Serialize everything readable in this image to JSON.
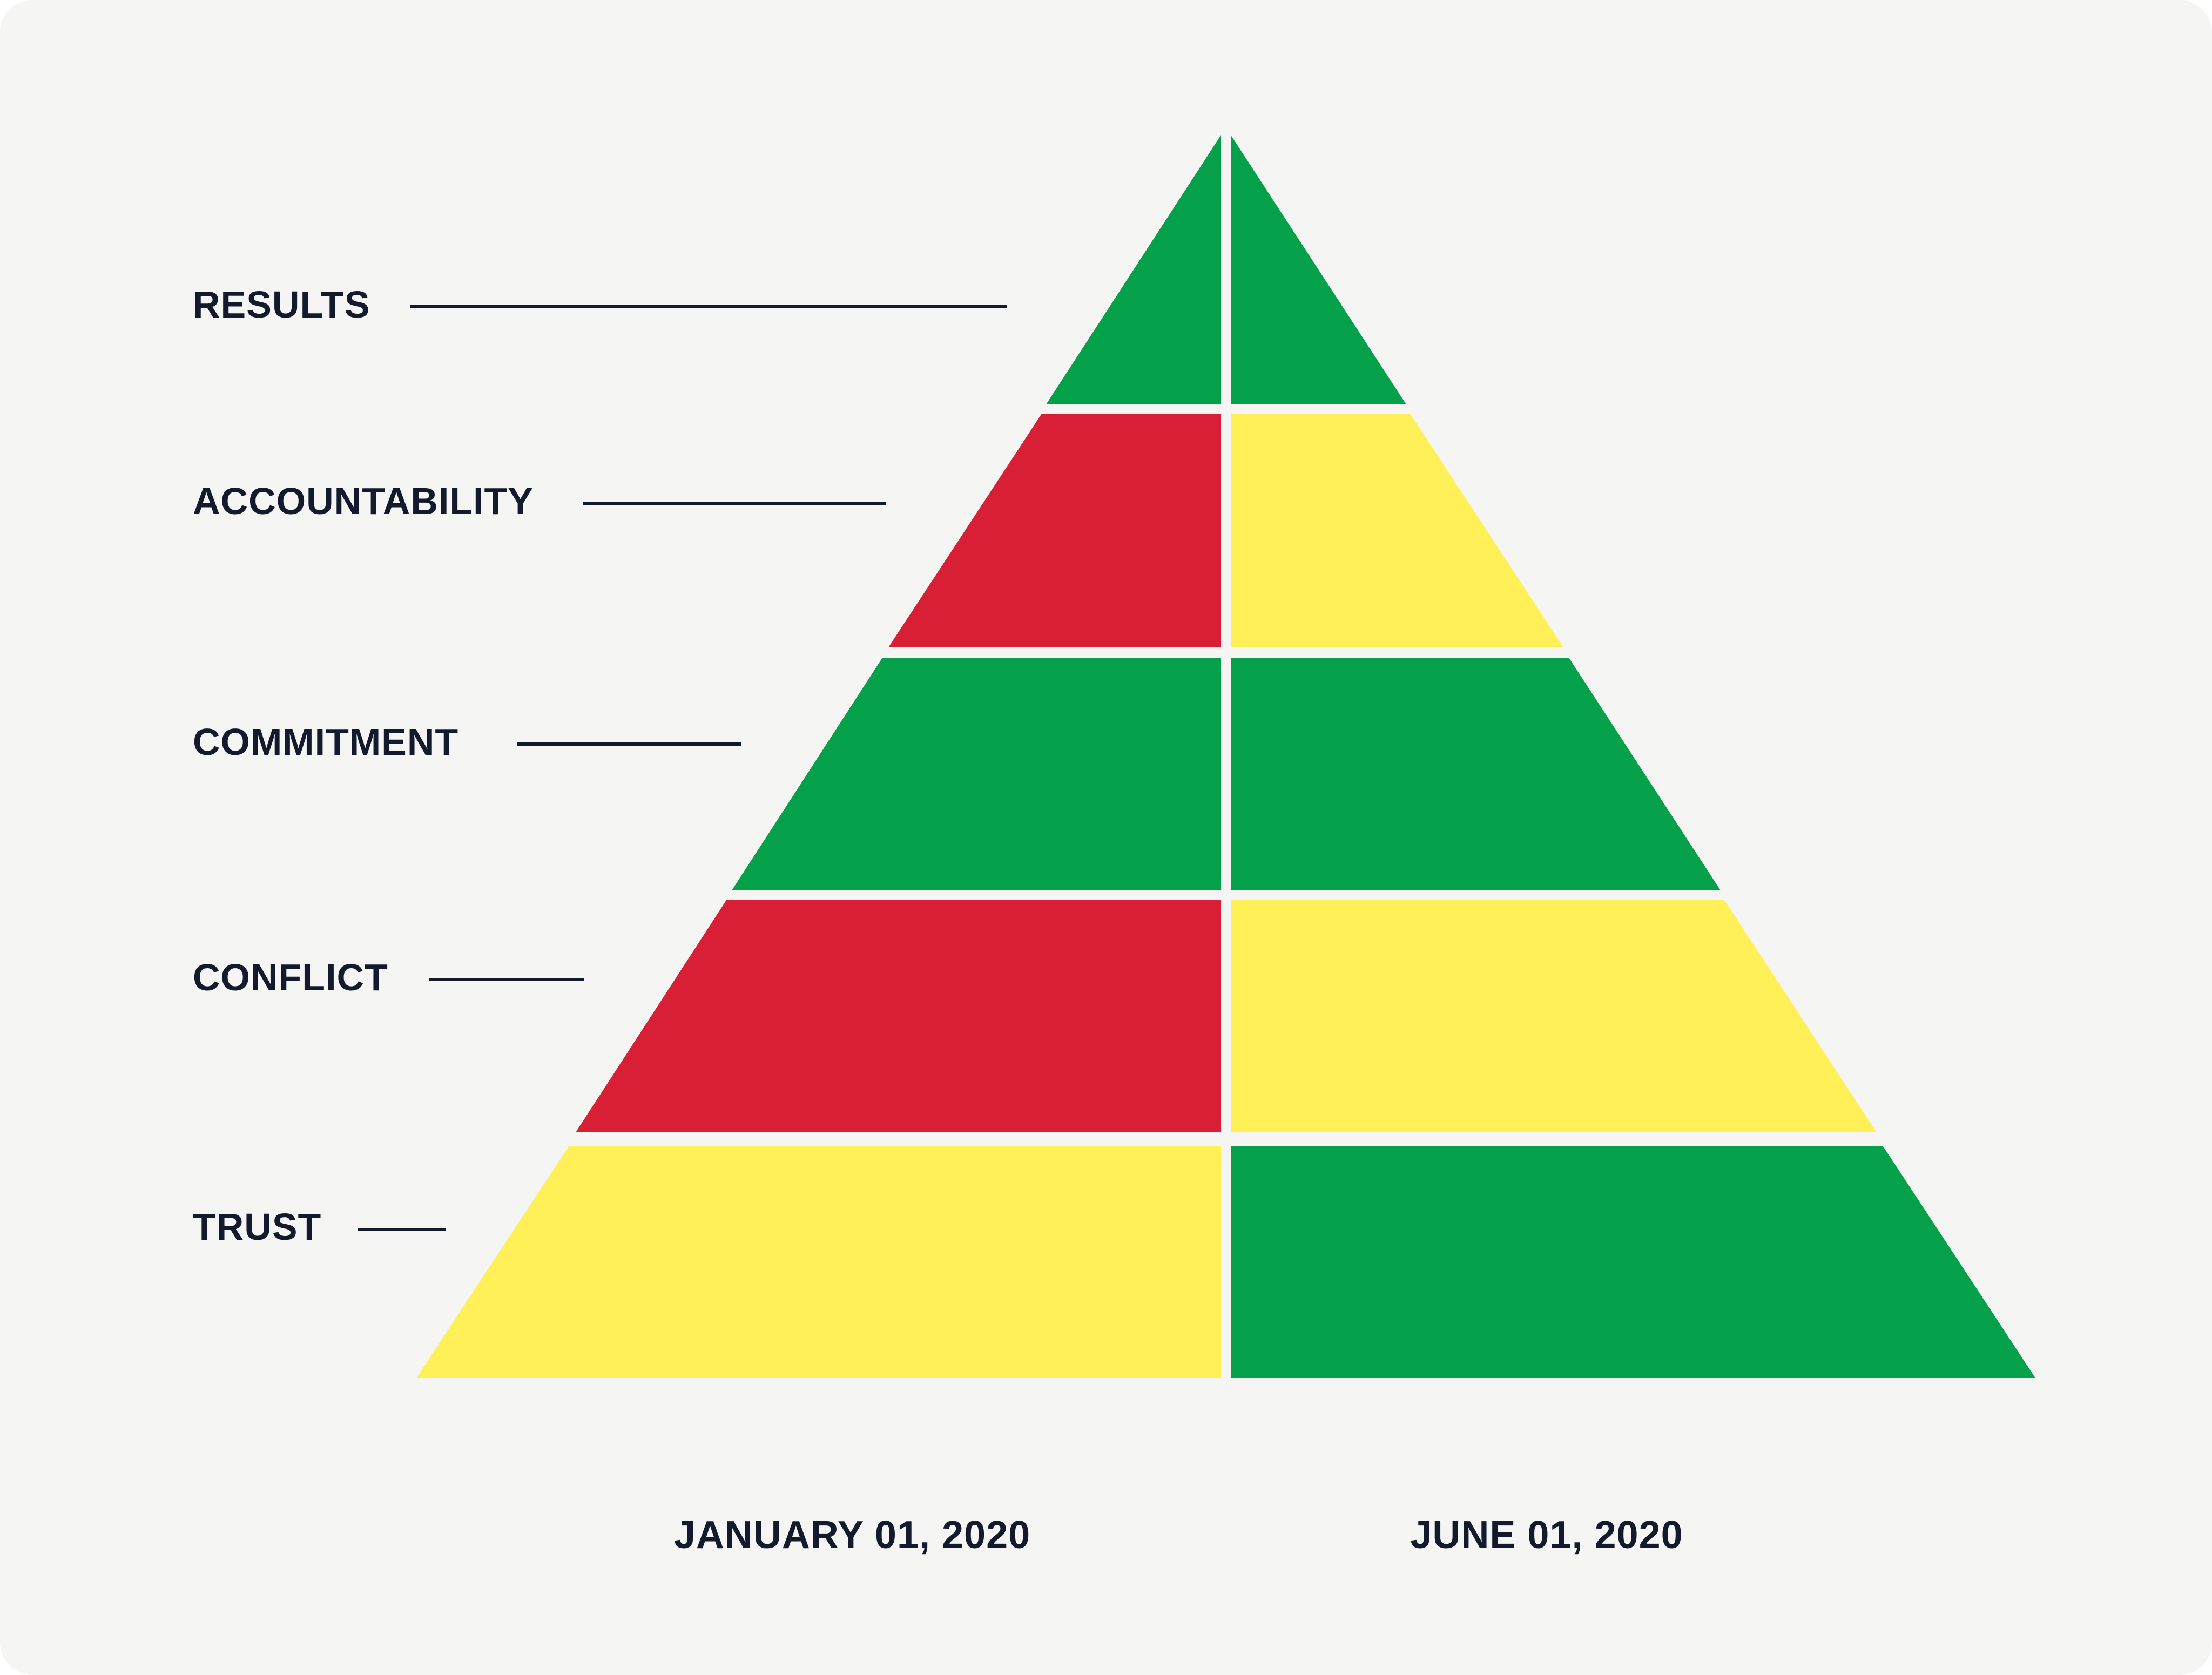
{
  "colors": {
    "green": "#04a04a",
    "red": "#d91f35",
    "yellow": "#fff057",
    "text": "#141a2e",
    "background": "#f5f5f3"
  },
  "dates": {
    "left": "JANUARY 01, 2020",
    "right": "JUNE 01, 2020"
  },
  "levels": [
    {
      "label": "RESULTS",
      "left_status": "green",
      "right_status": "green"
    },
    {
      "label": "ACCOUNTABILITY",
      "left_status": "red",
      "right_status": "yellow"
    },
    {
      "label": "COMMITMENT",
      "left_status": "green",
      "right_status": "green"
    },
    {
      "label": "CONFLICT",
      "left_status": "red",
      "right_status": "yellow"
    },
    {
      "label": "TRUST",
      "left_status": "yellow",
      "right_status": "green"
    }
  ]
}
